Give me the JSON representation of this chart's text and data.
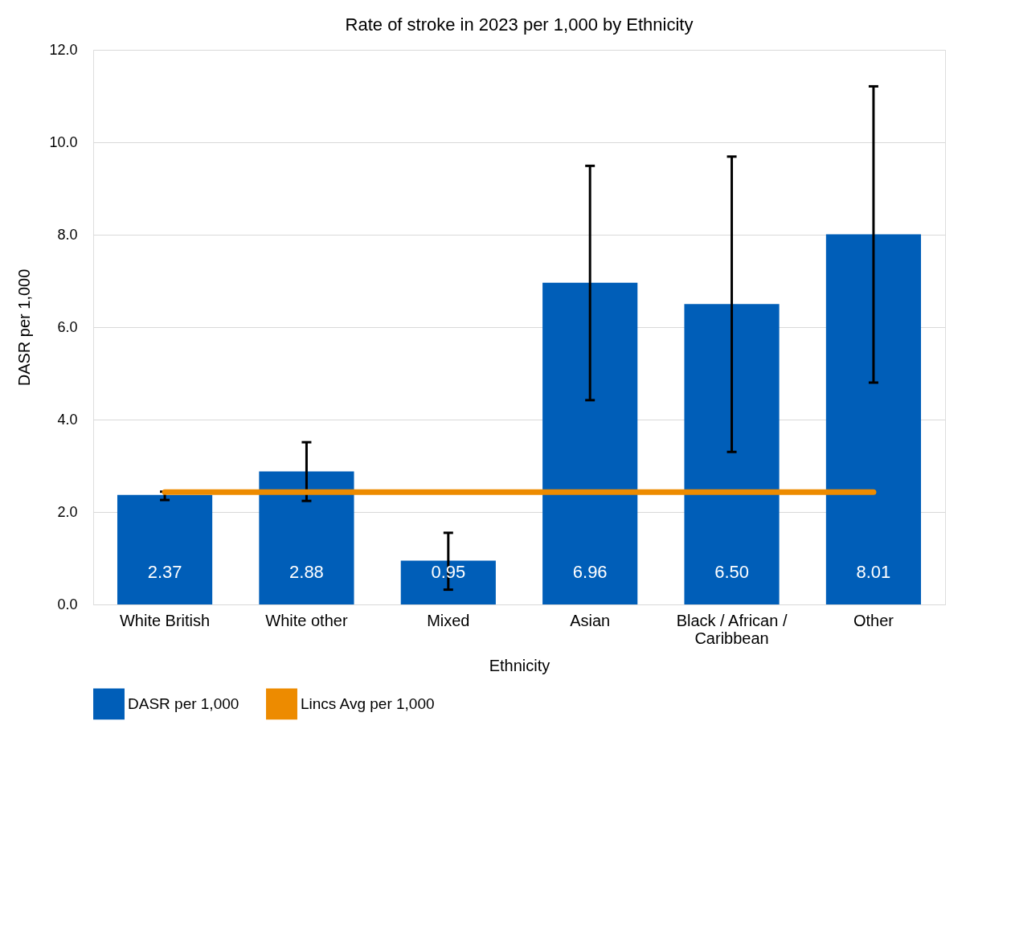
{
  "chart_data": {
    "type": "bar",
    "title": "Rate of stroke in 2023 per 1,000 by Ethnicity",
    "xlabel": "Ethnicity",
    "ylabel": "DASR per 1,000",
    "categories": [
      "White British",
      "White other",
      "Mixed",
      "Asian",
      "Black / African / Caribbean",
      "Other"
    ],
    "series": [
      {
        "name": "DASR per 1,000",
        "color": "#005eb8",
        "values": [
          2.37,
          2.88,
          0.95,
          6.96,
          6.5,
          8.01
        ],
        "value_labels": [
          "2.37",
          "2.88",
          "0.95",
          "6.96",
          "6.50",
          "8.01"
        ],
        "errors": [
          [
            2.26,
            2.44
          ],
          [
            2.24,
            3.51
          ],
          [
            0.32,
            1.55
          ],
          [
            4.42,
            9.49
          ],
          [
            3.3,
            9.69
          ],
          [
            4.8,
            11.21
          ]
        ]
      },
      {
        "name": "Lincs Avg per 1,000",
        "type": "line",
        "color": "#ed8b00",
        "values": [
          2.43,
          2.43,
          2.43,
          2.43,
          2.43,
          2.43
        ]
      }
    ],
    "ylim": [
      0,
      12
    ],
    "yticks": [
      {
        "value": 0,
        "label": "0.0"
      },
      {
        "value": 2,
        "label": "2.0"
      },
      {
        "value": 4,
        "label": "4.0"
      },
      {
        "value": 6,
        "label": "6.0"
      },
      {
        "value": 8,
        "label": "8.0"
      },
      {
        "value": 10,
        "label": "10.0"
      },
      {
        "value": 12,
        "label": "12.0"
      }
    ],
    "grid": "y",
    "legend": "bottom"
  }
}
